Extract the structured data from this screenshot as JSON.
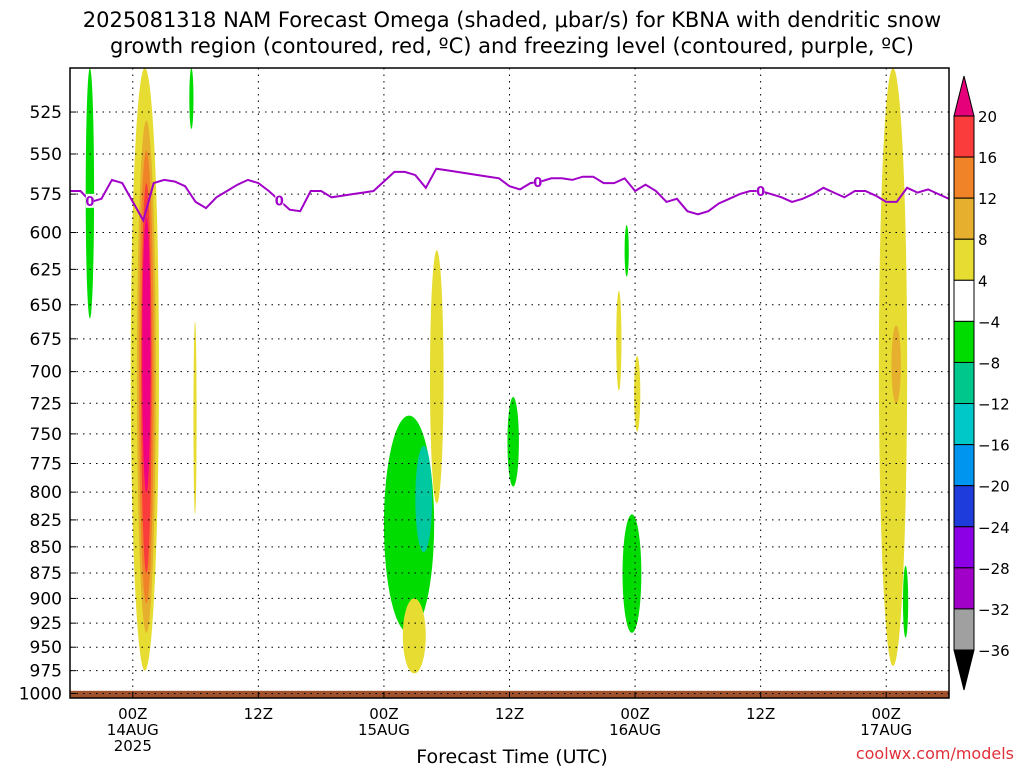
{
  "title": {
    "line1": "2025081318 NAM Forecast Omega (shaded, μbar/s) for KBNA with dendritic snow",
    "line2": "growth region (contoured, red, ºC) and freezing level (contoured, purple, ºC)"
  },
  "credit": "coolwx.com/models",
  "colors": {
    "green": "#00dc00",
    "teal": "#00c8a0",
    "cyan": "#00c8c8",
    "yellow": "#e6dc32",
    "gold": "#e6af2d",
    "orange": "#f08228",
    "red": "#fa3c3c",
    "magenta": "#f00082",
    "purple_contour": "#a000c8",
    "ground": "#a0522d",
    "grid": "#000000"
  },
  "chart_data": {
    "type": "heatmap",
    "xlabel": "Forecast Time (UTC)",
    "ylabel": "",
    "units": "μbar/s",
    "y_axis": {
      "ticks": [
        525,
        550,
        575,
        600,
        625,
        650,
        675,
        700,
        725,
        750,
        775,
        800,
        825,
        850,
        875,
        900,
        925,
        950,
        975,
        1000
      ],
      "range": [
        500,
        1005
      ],
      "scale": "log-pressure",
      "grid": "dotted"
    },
    "x_axis": {
      "range_hours": [
        -6,
        78
      ],
      "ticks": [
        {
          "hour": 0,
          "label": "00Z",
          "sublabel": "14AUG",
          "sublabel2": "2025"
        },
        {
          "hour": 12,
          "label": "12Z",
          "sublabel": "",
          "sublabel2": ""
        },
        {
          "hour": 24,
          "label": "00Z",
          "sublabel": "15AUG",
          "sublabel2": ""
        },
        {
          "hour": 36,
          "label": "12Z",
          "sublabel": "",
          "sublabel2": ""
        },
        {
          "hour": 48,
          "label": "00Z",
          "sublabel": "16AUG",
          "sublabel2": ""
        },
        {
          "hour": 60,
          "label": "12Z",
          "sublabel": "",
          "sublabel2": ""
        },
        {
          "hour": 72,
          "label": "00Z",
          "sublabel": "17AUG",
          "sublabel2": ""
        }
      ],
      "grid": "dotted"
    },
    "colorbar": {
      "labels": [
        "20",
        "16",
        "12",
        "8",
        "4",
        "−4",
        "−8",
        "−12",
        "−16",
        "−20",
        "−24",
        "−28",
        "−32",
        "−36"
      ],
      "bins": [
        {
          "range": "> 20",
          "color": "#e6007a"
        },
        {
          "range": "16 to 20",
          "color": "#fa3c3c"
        },
        {
          "range": "12 to 16",
          "color": "#f08228"
        },
        {
          "range": "8 to 12",
          "color": "#e6af2d"
        },
        {
          "range": "4 to 8",
          "color": "#e6dc32"
        },
        {
          "range": "-4 to 4",
          "color": "#ffffff"
        },
        {
          "range": "-8 to -4",
          "color": "#00dc00"
        },
        {
          "range": "-12 to -8",
          "color": "#00c88c"
        },
        {
          "range": "-16 to -12",
          "color": "#00c8c8"
        },
        {
          "range": "-20 to -16",
          "color": "#0096f0"
        },
        {
          "range": "-24 to -20",
          "color": "#1e3cdc"
        },
        {
          "range": "-28 to -24",
          "color": "#8c00e6"
        },
        {
          "range": "-32 to -28",
          "color": "#a000c8"
        },
        {
          "range": "-36 to -32",
          "color": "#a0a0a0"
        },
        {
          "range": "< -36",
          "color": "#000000"
        }
      ]
    },
    "shaded_regions": [
      {
        "value_bin": "-8 to -4",
        "color": "green",
        "hours": [
          -4.5,
          -3.7
        ],
        "pressure_top": 500,
        "pressure_bottom": 660
      },
      {
        "value_bin": "4 to 8",
        "color": "yellow",
        "hours": [
          -0.2,
          2.5
        ],
        "pressure_top": 500,
        "pressure_bottom": 975
      },
      {
        "value_bin": "8 to 12",
        "color": "gold",
        "hours": [
          0.4,
          2.2
        ],
        "pressure_top": 530,
        "pressure_bottom": 935
      },
      {
        "value_bin": "12 to 16",
        "color": "orange",
        "hours": [
          0.6,
          2.0
        ],
        "pressure_top": 548,
        "pressure_bottom": 905
      },
      {
        "value_bin": "16 to 20",
        "color": "red",
        "hours": [
          0.8,
          1.8
        ],
        "pressure_top": 568,
        "pressure_bottom": 875
      },
      {
        "value_bin": "> 20",
        "color": "magenta",
        "hours": [
          0.9,
          1.7
        ],
        "pressure_top": 590,
        "pressure_bottom": 800
      },
      {
        "value_bin": "-8 to -4",
        "color": "green",
        "hours": [
          5.4,
          5.8
        ],
        "pressure_top": 500,
        "pressure_bottom": 535
      },
      {
        "value_bin": "4 to 8",
        "color": "yellow",
        "hours": [
          5.8,
          6.1
        ],
        "pressure_top": 662,
        "pressure_bottom": 820
      },
      {
        "value_bin": "-8 to -4",
        "color": "green",
        "hours": [
          24.0,
          28.8
        ],
        "pressure_top": 735,
        "pressure_bottom": 935
      },
      {
        "value_bin": "-12 to -8",
        "color": "teal",
        "hours": [
          27.0,
          28.6
        ],
        "pressure_top": 760,
        "pressure_bottom": 855
      },
      {
        "value_bin": "4 to 8",
        "color": "yellow",
        "hours": [
          28.4,
          29.7
        ],
        "pressure_top": 612,
        "pressure_bottom": 810
      },
      {
        "value_bin": "4 to 8",
        "color": "yellow",
        "hours": [
          25.8,
          28.0
        ],
        "pressure_top": 900,
        "pressure_bottom": 978
      },
      {
        "value_bin": "-8 to -4",
        "color": "green",
        "hours": [
          35.8,
          36.9
        ],
        "pressure_top": 720,
        "pressure_bottom": 795
      },
      {
        "value_bin": "-8 to -4",
        "color": "green",
        "hours": [
          47.0,
          47.4
        ],
        "pressure_top": 595,
        "pressure_bottom": 630
      },
      {
        "value_bin": "4 to 8",
        "color": "yellow",
        "hours": [
          46.2,
          46.7
        ],
        "pressure_top": 640,
        "pressure_bottom": 715
      },
      {
        "value_bin": "4 to 8",
        "color": "yellow",
        "hours": [
          47.9,
          48.5
        ],
        "pressure_top": 688,
        "pressure_bottom": 748
      },
      {
        "value_bin": "-8 to -4",
        "color": "green",
        "hours": [
          46.8,
          48.6
        ],
        "pressure_top": 820,
        "pressure_bottom": 935
      },
      {
        "value_bin": "4 to 8",
        "color": "yellow",
        "hours": [
          71.3,
          74.0
        ],
        "pressure_top": 500,
        "pressure_bottom": 970
      },
      {
        "value_bin": "8 to 12",
        "color": "gold",
        "hours": [
          72.5,
          73.4
        ],
        "pressure_top": 665,
        "pressure_bottom": 725
      },
      {
        "value_bin": "-8 to -4",
        "color": "green",
        "hours": [
          73.6,
          74.1
        ],
        "pressure_top": 868,
        "pressure_bottom": 940
      }
    ],
    "freezing_level": {
      "label": "0",
      "label_hours": [
        -4.1,
        14.0,
        38.7,
        60.0
      ],
      "hours": [
        -6,
        -5,
        -4,
        -3,
        -2,
        -1,
        0,
        1,
        2,
        3,
        4,
        5,
        6,
        7,
        8,
        9,
        10,
        11,
        12,
        13,
        14,
        15,
        16,
        17,
        18,
        19,
        20,
        21,
        22,
        23,
        24,
        25,
        26,
        27,
        28,
        29,
        30,
        31,
        32,
        33,
        34,
        35,
        36,
        37,
        38,
        39,
        40,
        41,
        42,
        43,
        44,
        45,
        46,
        47,
        48,
        49,
        50,
        51,
        52,
        53,
        54,
        55,
        56,
        57,
        58,
        59,
        60,
        61,
        62,
        63,
        64,
        65,
        66,
        67,
        68,
        69,
        70,
        71,
        72,
        73,
        74,
        75,
        76,
        77,
        78
      ],
      "pressure": [
        573,
        573,
        580,
        578,
        566,
        568,
        580,
        592,
        568,
        566,
        567,
        570,
        580,
        584,
        577,
        573,
        569,
        566,
        568,
        573,
        579,
        585,
        586,
        573,
        573,
        577,
        576,
        575,
        574,
        573,
        567,
        561,
        561,
        563,
        571,
        559,
        560,
        561,
        562,
        563,
        564,
        565,
        570,
        572,
        568,
        567,
        565,
        565,
        566,
        564,
        564,
        568,
        568,
        565,
        573,
        569,
        573,
        580,
        578,
        586,
        588,
        586,
        581,
        578,
        575,
        573,
        573,
        575,
        577,
        580,
        578,
        575,
        571,
        574,
        577,
        573,
        573,
        576,
        580,
        580,
        571,
        574,
        572,
        575,
        578
      ]
    },
    "ground": {
      "pressure_top": 997,
      "pressure_bottom": 1005
    }
  }
}
